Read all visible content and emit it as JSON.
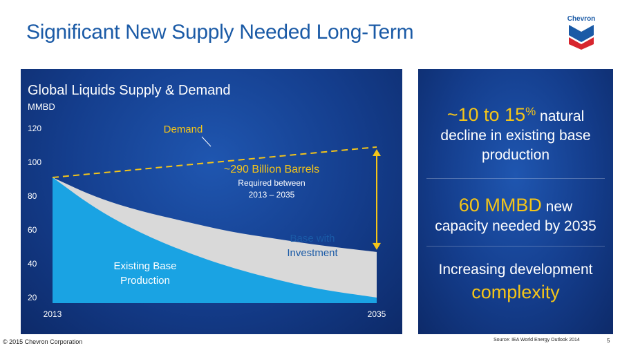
{
  "slide": {
    "title": "Significant New Supply Needed Long-Term",
    "logo_text": "Chevron",
    "footer_copyright": "© 2015 Chevron Corporation",
    "footer_source": "Source: IEA World Energy Outlook 2014",
    "page_number": "5"
  },
  "info_panel": {
    "block1_highlight": "~10 to 15",
    "block1_percent": "%",
    "block1_after": " natural",
    "block1_line2": "decline in existing base",
    "block1_line3": "production",
    "block2_highlight": "60 MMBD",
    "block2_after": " new",
    "block2_line2": "capacity needed by 2035",
    "block3_line1": "Increasing development",
    "block3_highlight": "complexity"
  },
  "chart_data": {
    "type": "area",
    "title": "Global Liquids Supply & Demand",
    "ylabel": "MMBD",
    "xlabel": "",
    "x": [
      2013,
      2035
    ],
    "x_tick_labels": [
      "2013",
      "2035"
    ],
    "ylim": [
      0,
      120
    ],
    "y_ticks": [
      20,
      40,
      60,
      80,
      100,
      120
    ],
    "series": [
      {
        "name": "Demand",
        "style": "dashed-line",
        "color": "#f5c518",
        "points": [
          [
            2013,
            91
          ],
          [
            2035,
            109
          ]
        ]
      },
      {
        "name": "Base with Investment",
        "style": "area",
        "color": "#d9d9d9",
        "points": [
          [
            2013,
            91
          ],
          [
            2016,
            79
          ],
          [
            2019,
            71
          ],
          [
            2022,
            65
          ],
          [
            2025,
            59
          ],
          [
            2028,
            55
          ],
          [
            2031,
            51
          ],
          [
            2035,
            47
          ]
        ]
      },
      {
        "name": "Existing Base Production",
        "style": "area",
        "color": "#1aa3e3",
        "points": [
          [
            2013,
            91
          ],
          [
            2016,
            72
          ],
          [
            2019,
            58
          ],
          [
            2022,
            47
          ],
          [
            2025,
            38
          ],
          [
            2028,
            31
          ],
          [
            2031,
            25
          ],
          [
            2035,
            20
          ]
        ]
      }
    ],
    "annotations": {
      "demand_label": "Demand",
      "base_with_investment_line1": "Base with",
      "base_with_investment_line2": "Investment",
      "existing_base_line1": "Existing Base",
      "existing_base_line2": "Production",
      "gap_value": "~290 Billion Barrels",
      "gap_sub_line1": "Required between",
      "gap_sub_line2": "2013 – 2035"
    },
    "colors": {
      "demand": "#f5c518",
      "base_with_investment": "#d9d9d9",
      "existing_base": "#1aa3e3",
      "panel_background": "#143d8c"
    }
  }
}
